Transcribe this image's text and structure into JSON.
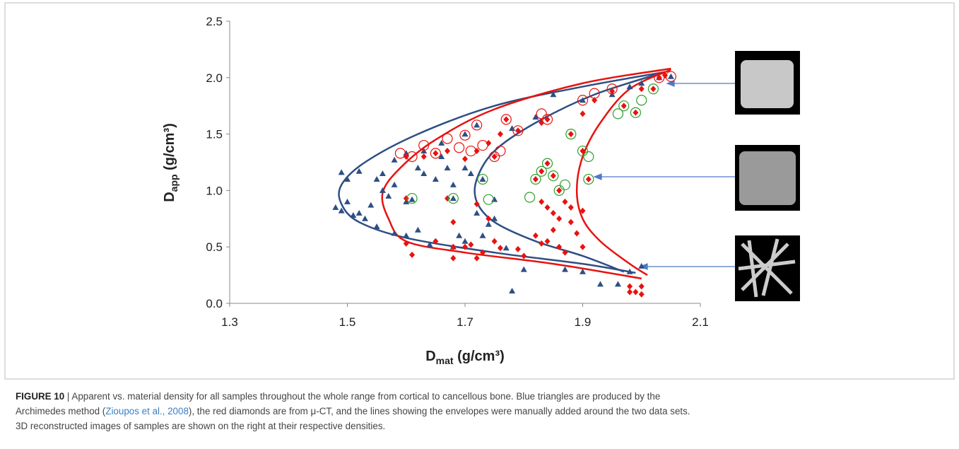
{
  "chart_data": {
    "type": "scatter",
    "x_label": {
      "main": "D",
      "sub": "mat",
      "unit": " (g/cm³)"
    },
    "y_label": {
      "main": "D",
      "sub": "app",
      "unit": " (g/cm³)"
    },
    "xlim": [
      1.3,
      2.1
    ],
    "xticks": [
      1.3,
      1.5,
      1.7,
      1.9,
      2.1
    ],
    "ylim": [
      0,
      2.5
    ],
    "yticks": [
      {
        "value": 0,
        "label": "0.0"
      },
      0.5,
      {
        "value": 1,
        "label": "1.0"
      },
      1.5,
      {
        "value": 2,
        "label": "2.0"
      },
      2.5
    ],
    "series": [
      {
        "marker": "triangle",
        "color": "#2e4f83",
        "x": [
          1.49,
          1.5,
          1.48,
          1.49,
          1.5,
          1.51,
          1.53,
          1.52,
          1.55,
          1.56,
          1.57,
          1.58,
          1.58,
          1.6,
          1.6,
          1.62,
          1.62,
          1.63,
          1.64,
          1.65,
          1.66,
          1.67,
          1.68,
          1.69,
          1.7,
          1.71,
          1.72,
          1.73,
          1.74,
          1.75,
          1.6,
          1.63,
          1.66,
          1.7,
          1.72,
          1.61,
          1.68,
          1.73,
          1.75,
          1.78,
          1.77,
          1.8,
          1.87,
          1.9,
          1.93,
          1.96,
          1.98,
          2.0,
          1.9,
          1.95,
          1.98,
          2.0,
          2.03,
          2.05,
          1.85,
          1.82,
          1.78,
          1.55,
          1.58,
          1.56,
          1.7,
          1.68,
          1.52,
          1.54
        ],
        "y": [
          1.16,
          1.1,
          0.85,
          0.82,
          0.9,
          0.78,
          0.75,
          0.8,
          1.1,
          1.0,
          0.95,
          1.05,
          1.27,
          0.6,
          0.9,
          0.65,
          1.2,
          1.15,
          0.52,
          1.1,
          1.3,
          1.2,
          1.05,
          0.6,
          1.2,
          1.15,
          0.8,
          0.6,
          0.7,
          0.75,
          1.33,
          1.35,
          1.42,
          1.5,
          1.58,
          0.92,
          0.93,
          1.1,
          0.92,
          0.11,
          0.49,
          0.3,
          0.3,
          0.28,
          0.17,
          0.17,
          0.28,
          0.33,
          1.8,
          1.85,
          1.92,
          1.95,
          2.0,
          2.01,
          1.85,
          1.65,
          1.55,
          0.68,
          0.62,
          1.15,
          0.55,
          0.5,
          1.17,
          0.87
        ]
      },
      {
        "marker": "diamond",
        "color": "#e8120f",
        "x": [
          1.6,
          1.61,
          1.65,
          1.68,
          1.68,
          1.7,
          1.71,
          1.72,
          1.73,
          1.75,
          1.76,
          1.79,
          1.8,
          1.82,
          1.83,
          1.84,
          1.85,
          1.86,
          1.87,
          1.88,
          1.89,
          1.9,
          1.85,
          1.86,
          1.84,
          1.83,
          1.87,
          1.88,
          1.9,
          1.98,
          1.99,
          2.0,
          2.0,
          1.98,
          1.68,
          1.72,
          1.74,
          1.6,
          1.67,
          1.82,
          1.83,
          1.85,
          1.86,
          1.84,
          1.88,
          1.9,
          1.91,
          1.9,
          1.92,
          1.95,
          1.97,
          1.99,
          2.0,
          2.02,
          2.03,
          2.04,
          1.6,
          1.63,
          1.67,
          1.72,
          1.75,
          1.77,
          1.79,
          1.83,
          1.84,
          1.65,
          1.7,
          1.74,
          1.76
        ],
        "y": [
          0.53,
          0.43,
          0.55,
          0.5,
          0.4,
          0.5,
          0.52,
          0.4,
          0.45,
          0.55,
          0.49,
          0.48,
          0.42,
          0.6,
          0.53,
          0.55,
          0.65,
          0.5,
          0.45,
          0.72,
          0.62,
          0.5,
          0.8,
          0.75,
          0.85,
          0.9,
          0.9,
          0.85,
          0.82,
          0.15,
          0.1,
          0.08,
          0.15,
          0.1,
          0.72,
          0.88,
          0.75,
          0.93,
          0.93,
          1.1,
          1.17,
          1.13,
          1.0,
          1.24,
          1.5,
          1.35,
          1.1,
          1.68,
          1.8,
          1.88,
          1.75,
          1.69,
          1.9,
          1.9,
          2.0,
          2.02,
          1.3,
          1.3,
          1.35,
          1.35,
          1.3,
          1.63,
          1.53,
          1.6,
          1.63,
          1.33,
          1.28,
          1.42,
          1.5
        ]
      },
      {
        "marker": "ring",
        "color": "#e8120f",
        "x": [
          1.59,
          1.61,
          1.63,
          1.67,
          1.7,
          1.71,
          1.73,
          1.76,
          1.75,
          1.77,
          1.79,
          1.83,
          1.84,
          1.9,
          1.92,
          1.95,
          2.03,
          2.05,
          1.65,
          1.69,
          1.72
        ],
        "y": [
          1.33,
          1.3,
          1.4,
          1.46,
          1.49,
          1.35,
          1.4,
          1.35,
          1.3,
          1.63,
          1.53,
          1.68,
          1.63,
          1.8,
          1.86,
          1.9,
          2.0,
          2.01,
          1.33,
          1.38,
          1.58
        ]
      },
      {
        "marker": "ring",
        "color": "#2ca02c",
        "x": [
          1.61,
          1.68,
          1.74,
          1.73,
          1.82,
          1.83,
          1.84,
          1.85,
          1.86,
          1.87,
          1.81,
          1.88,
          1.9,
          1.91,
          1.91,
          1.96,
          1.97,
          1.99,
          2.0,
          2.02
        ],
        "y": [
          0.93,
          0.93,
          0.92,
          1.1,
          1.1,
          1.17,
          1.24,
          1.13,
          1.0,
          1.05,
          0.94,
          1.5,
          1.35,
          1.1,
          1.3,
          1.68,
          1.75,
          1.69,
          1.8,
          1.9
        ]
      },
      {
        "marker": "line",
        "color": "#2e4f83",
        "x": [
          2.04,
          1.9,
          1.75,
          1.62,
          1.53,
          1.49,
          1.49,
          1.52,
          1.6,
          1.75,
          1.9,
          1.99
        ],
        "y": [
          2.05,
          1.92,
          1.75,
          1.5,
          1.25,
          1.05,
          0.88,
          0.72,
          0.58,
          0.45,
          0.35,
          0.27
        ]
      },
      {
        "marker": "line",
        "color": "#2e4f83",
        "x": [
          2.04,
          1.92,
          1.82,
          1.75,
          1.72,
          1.72,
          1.75,
          1.82,
          1.9,
          1.97
        ],
        "y": [
          2.05,
          1.85,
          1.6,
          1.35,
          1.1,
          0.9,
          0.72,
          0.55,
          0.42,
          0.28
        ]
      },
      {
        "marker": "line",
        "color": "#e8120f",
        "x": [
          2.05,
          1.9,
          1.75,
          1.65,
          1.59,
          1.56,
          1.57,
          1.6,
          1.7,
          1.85,
          2.0
        ],
        "y": [
          2.08,
          1.95,
          1.72,
          1.45,
          1.2,
          0.98,
          0.75,
          0.55,
          0.45,
          0.35,
          0.22
        ]
      },
      {
        "marker": "line",
        "color": "#e8120f",
        "x": [
          2.05,
          1.98,
          1.93,
          1.9,
          1.89,
          1.9,
          1.93,
          1.98,
          2.01
        ],
        "y": [
          2.07,
          1.9,
          1.6,
          1.3,
          1.0,
          0.75,
          0.55,
          0.35,
          0.25
        ]
      }
    ]
  },
  "caption": {
    "label": "FIGURE 10",
    "text_1": " | Apparent vs. material density for all samples throughout the whole range from cortical to cancellous bone. Blue triangles are produced by the",
    "text_2": "Archimedes method (",
    "citation": "Zioupos et al., 2008",
    "text_3": "), the red diamonds are from μ-CT, and the lines showing the envelopes were manually added around the two data sets.",
    "text_4": "3D reconstructed images of samples are shown on the right at their respective densities."
  }
}
